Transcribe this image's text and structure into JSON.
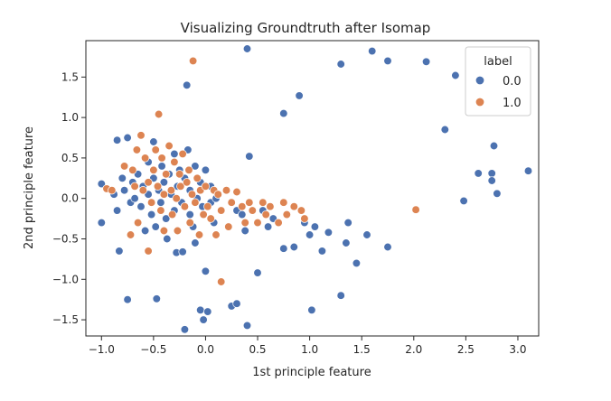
{
  "chart_data": {
    "type": "scatter",
    "title": "Visualizing Groundtruth after Isomap",
    "xlabel": "1st principle feature",
    "ylabel": "2nd principle feature",
    "xlim": [
      -1.15,
      3.2
    ],
    "ylim": [
      -1.7,
      1.95
    ],
    "xticks": [
      -1.0,
      -0.5,
      0.0,
      0.5,
      1.0,
      1.5,
      2.0,
      2.5,
      3.0
    ],
    "xtick_labels": [
      "−1.0",
      "−0.5",
      "0.0",
      "0.5",
      "1.0",
      "1.5",
      "2.0",
      "2.5",
      "3.0"
    ],
    "yticks": [
      -1.5,
      -1.0,
      -0.5,
      0.0,
      0.5,
      1.0,
      1.5
    ],
    "yticks_labels": [
      "−1.5",
      "−1.0",
      "−0.5",
      "0.0",
      "0.5",
      "1.0",
      "1.5"
    ],
    "grid": false,
    "legend": {
      "title": "label",
      "placement": "top-right",
      "entries": [
        "0.0",
        "1.0"
      ]
    },
    "series": [
      {
        "name": "0.0",
        "color": "#4C72B0",
        "points": [
          [
            -1.0,
            0.18
          ],
          [
            -1.0,
            -0.3
          ],
          [
            -0.88,
            0.05
          ],
          [
            -0.85,
            -0.15
          ],
          [
            -0.85,
            0.72
          ],
          [
            -0.83,
            -0.65
          ],
          [
            -0.8,
            0.25
          ],
          [
            -0.78,
            0.1
          ],
          [
            -0.75,
            0.75
          ],
          [
            -0.75,
            -1.25
          ],
          [
            -0.72,
            -0.05
          ],
          [
            -0.7,
            0.2
          ],
          [
            -0.68,
            0.0
          ],
          [
            -0.65,
            0.3
          ],
          [
            -0.62,
            -0.1
          ],
          [
            -0.6,
            0.15
          ],
          [
            -0.58,
            -0.4
          ],
          [
            -0.55,
            0.05
          ],
          [
            -0.55,
            0.45
          ],
          [
            -0.52,
            -0.2
          ],
          [
            -0.5,
            0.7
          ],
          [
            -0.5,
            0.25
          ],
          [
            -0.48,
            -0.35
          ],
          [
            -0.47,
            -1.24
          ],
          [
            -0.45,
            0.1
          ],
          [
            -0.43,
            -0.05
          ],
          [
            -0.42,
            0.4
          ],
          [
            -0.4,
            0.2
          ],
          [
            -0.38,
            -0.25
          ],
          [
            -0.37,
            -0.5
          ],
          [
            -0.35,
            0.3
          ],
          [
            -0.33,
            0.05
          ],
          [
            -0.3,
            -0.15
          ],
          [
            -0.3,
            0.55
          ],
          [
            -0.28,
            -0.67
          ],
          [
            -0.27,
            0.15
          ],
          [
            -0.25,
            0.35
          ],
          [
            -0.23,
            -0.05
          ],
          [
            -0.22,
            -0.66
          ],
          [
            -0.2,
            -1.62
          ],
          [
            -0.2,
            0.25
          ],
          [
            -0.18,
            1.4
          ],
          [
            -0.17,
            0.6
          ],
          [
            -0.15,
            -0.2
          ],
          [
            -0.15,
            0.1
          ],
          [
            -0.12,
            -0.35
          ],
          [
            -0.1,
            0.4
          ],
          [
            -0.1,
            -0.55
          ],
          [
            -0.08,
            0.0
          ],
          [
            -0.05,
            0.2
          ],
          [
            -0.05,
            -1.38
          ],
          [
            -0.03,
            -0.1
          ],
          [
            -0.02,
            -1.5
          ],
          [
            0.0,
            -0.9
          ],
          [
            0.0,
            0.35
          ],
          [
            0.02,
            -1.4
          ],
          [
            0.05,
            0.15
          ],
          [
            0.05,
            -0.05
          ],
          [
            0.08,
            -0.3
          ],
          [
            0.1,
            0.0
          ],
          [
            0.25,
            -1.33
          ],
          [
            0.3,
            -1.3
          ],
          [
            0.3,
            -0.15
          ],
          [
            0.35,
            -0.2
          ],
          [
            0.38,
            -0.4
          ],
          [
            0.4,
            -1.57
          ],
          [
            0.4,
            1.85
          ],
          [
            0.42,
            0.52
          ],
          [
            0.5,
            -0.92
          ],
          [
            0.5,
            -0.3
          ],
          [
            0.55,
            -0.15
          ],
          [
            0.6,
            -0.35
          ],
          [
            0.65,
            -0.25
          ],
          [
            0.75,
            1.05
          ],
          [
            0.75,
            -0.62
          ],
          [
            0.85,
            -0.6
          ],
          [
            0.9,
            1.27
          ],
          [
            0.95,
            -0.3
          ],
          [
            1.0,
            -0.45
          ],
          [
            1.02,
            -1.38
          ],
          [
            1.05,
            -0.35
          ],
          [
            1.12,
            -0.65
          ],
          [
            1.18,
            -0.42
          ],
          [
            1.3,
            1.66
          ],
          [
            1.3,
            -1.2
          ],
          [
            1.35,
            -0.55
          ],
          [
            1.37,
            -0.3
          ],
          [
            1.45,
            -0.8
          ],
          [
            1.55,
            -0.45
          ],
          [
            1.6,
            1.82
          ],
          [
            1.75,
            1.7
          ],
          [
            1.75,
            -0.6
          ],
          [
            2.12,
            1.69
          ],
          [
            2.3,
            0.85
          ],
          [
            2.4,
            1.52
          ],
          [
            2.48,
            -0.03
          ],
          [
            2.62,
            0.31
          ],
          [
            2.75,
            0.31
          ],
          [
            2.75,
            0.22
          ],
          [
            2.77,
            0.65
          ],
          [
            2.8,
            0.06
          ],
          [
            3.1,
            0.34
          ]
        ]
      },
      {
        "name": "1.0",
        "color": "#DD8452",
        "points": [
          [
            -0.95,
            0.12
          ],
          [
            -0.9,
            0.1
          ],
          [
            -0.78,
            0.4
          ],
          [
            -0.72,
            -0.45
          ],
          [
            -0.7,
            0.35
          ],
          [
            -0.68,
            0.15
          ],
          [
            -0.66,
            0.6
          ],
          [
            -0.65,
            -0.3
          ],
          [
            -0.62,
            0.78
          ],
          [
            -0.6,
            0.1
          ],
          [
            -0.58,
            0.5
          ],
          [
            -0.55,
            -0.65
          ],
          [
            -0.55,
            0.2
          ],
          [
            -0.52,
            -0.05
          ],
          [
            -0.5,
            0.35
          ],
          [
            -0.48,
            0.6
          ],
          [
            -0.46,
            0.15
          ],
          [
            -0.45,
            1.04
          ],
          [
            -0.43,
            -0.15
          ],
          [
            -0.42,
            0.5
          ],
          [
            -0.4,
            0.05
          ],
          [
            -0.4,
            -0.4
          ],
          [
            -0.38,
            0.3
          ],
          [
            -0.35,
            0.65
          ],
          [
            -0.33,
            0.1
          ],
          [
            -0.32,
            -0.2
          ],
          [
            -0.3,
            0.45
          ],
          [
            -0.28,
            0.0
          ],
          [
            -0.27,
            -0.4
          ],
          [
            -0.25,
            0.3
          ],
          [
            -0.24,
            0.15
          ],
          [
            -0.22,
            0.55
          ],
          [
            -0.2,
            -0.1
          ],
          [
            -0.18,
            0.2
          ],
          [
            -0.16,
            0.35
          ],
          [
            -0.15,
            -0.3
          ],
          [
            -0.13,
            0.05
          ],
          [
            -0.12,
            1.7
          ],
          [
            -0.1,
            -0.05
          ],
          [
            -0.08,
            0.25
          ],
          [
            -0.06,
            -0.45
          ],
          [
            -0.05,
            0.1
          ],
          [
            -0.02,
            -0.2
          ],
          [
            0.0,
            0.15
          ],
          [
            0.02,
            -0.1
          ],
          [
            0.05,
            -0.25
          ],
          [
            0.08,
            0.1
          ],
          [
            0.1,
            -0.45
          ],
          [
            0.12,
            0.05
          ],
          [
            0.15,
            -1.03
          ],
          [
            0.15,
            -0.15
          ],
          [
            0.2,
            0.1
          ],
          [
            0.22,
            -0.35
          ],
          [
            0.25,
            -0.05
          ],
          [
            0.3,
            0.08
          ],
          [
            0.35,
            -0.1
          ],
          [
            0.38,
            -0.3
          ],
          [
            0.42,
            -0.05
          ],
          [
            0.45,
            -0.15
          ],
          [
            0.5,
            -0.3
          ],
          [
            0.55,
            -0.05
          ],
          [
            0.58,
            -0.2
          ],
          [
            0.62,
            -0.1
          ],
          [
            0.7,
            -0.3
          ],
          [
            0.75,
            -0.05
          ],
          [
            0.78,
            -0.2
          ],
          [
            0.85,
            -0.1
          ],
          [
            0.92,
            -0.15
          ],
          [
            0.95,
            -0.25
          ],
          [
            2.02,
            -0.14
          ]
        ]
      }
    ]
  }
}
